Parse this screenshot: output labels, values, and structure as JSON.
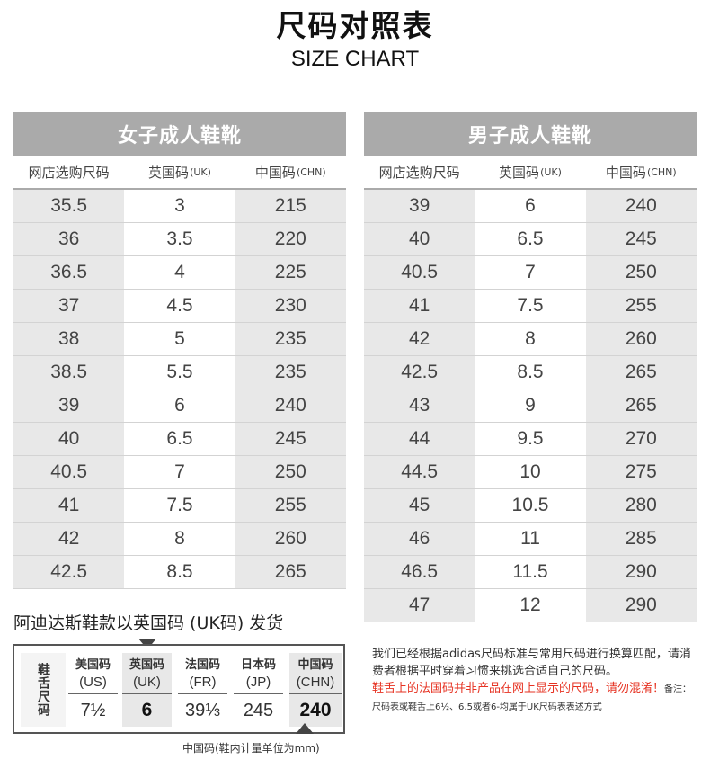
{
  "title": "尺码对照表",
  "subtitle": "SIZE CHART",
  "column_headers": {
    "store": "网店选购尺码",
    "uk": "英国码",
    "uk_suffix": "(UK)",
    "chn": "中国码",
    "chn_suffix": "(CHN)"
  },
  "women": {
    "title": "女子成人鞋靴",
    "rows": [
      [
        "35.5",
        "3",
        "215"
      ],
      [
        "36",
        "3.5",
        "220"
      ],
      [
        "36.5",
        "4",
        "225"
      ],
      [
        "37",
        "4.5",
        "230"
      ],
      [
        "38",
        "5",
        "235"
      ],
      [
        "38.5",
        "5.5",
        "235"
      ],
      [
        "39",
        "6",
        "240"
      ],
      [
        "40",
        "6.5",
        "245"
      ],
      [
        "40.5",
        "7",
        "250"
      ],
      [
        "41",
        "7.5",
        "255"
      ],
      [
        "42",
        "8",
        "260"
      ],
      [
        "42.5",
        "8.5",
        "265"
      ]
    ]
  },
  "men": {
    "title": "男子成人鞋靴",
    "rows": [
      [
        "39",
        "6",
        "240"
      ],
      [
        "40",
        "6.5",
        "245"
      ],
      [
        "40.5",
        "7",
        "250"
      ],
      [
        "41",
        "7.5",
        "255"
      ],
      [
        "42",
        "8",
        "260"
      ],
      [
        "42.5",
        "8.5",
        "265"
      ],
      [
        "43",
        "9",
        "265"
      ],
      [
        "44",
        "9.5",
        "270"
      ],
      [
        "44.5",
        "10",
        "275"
      ],
      [
        "45",
        "10.5",
        "280"
      ],
      [
        "46",
        "11",
        "285"
      ],
      [
        "46.5",
        "11.5",
        "290"
      ],
      [
        "47",
        "12",
        "290"
      ]
    ]
  },
  "shipping_note": "阿迪达斯鞋款以英国码 (UK码) 发货",
  "label_example": {
    "side_label": "鞋舌尺码",
    "columns": [
      {
        "name": "美国码",
        "code": "(US)",
        "value": "7½"
      },
      {
        "name": "英国码",
        "code": "(UK)",
        "value": "6"
      },
      {
        "name": "法国码",
        "code": "(FR)",
        "value": "39⅓"
      },
      {
        "name": "日本码",
        "code": "(JP)",
        "value": "245"
      },
      {
        "name": "中国码",
        "code": "(CHN)",
        "value": "240"
      }
    ],
    "unit_note": "中国码(鞋内计量单位为mm)"
  },
  "info": {
    "text1": "我们已经根据adidas尺码标准与常用尺码进行换算匹配，请消费者根据平时穿着习惯来挑选合适自己的尺码。",
    "warning": "鞋舌上的法国码并非产品在网上显示的尺码，请勿混淆！",
    "note_prefix": "备注：",
    "note": "尺码表或鞋舌上6½、6.5或者6-均属于UK尺码表表述方式"
  }
}
